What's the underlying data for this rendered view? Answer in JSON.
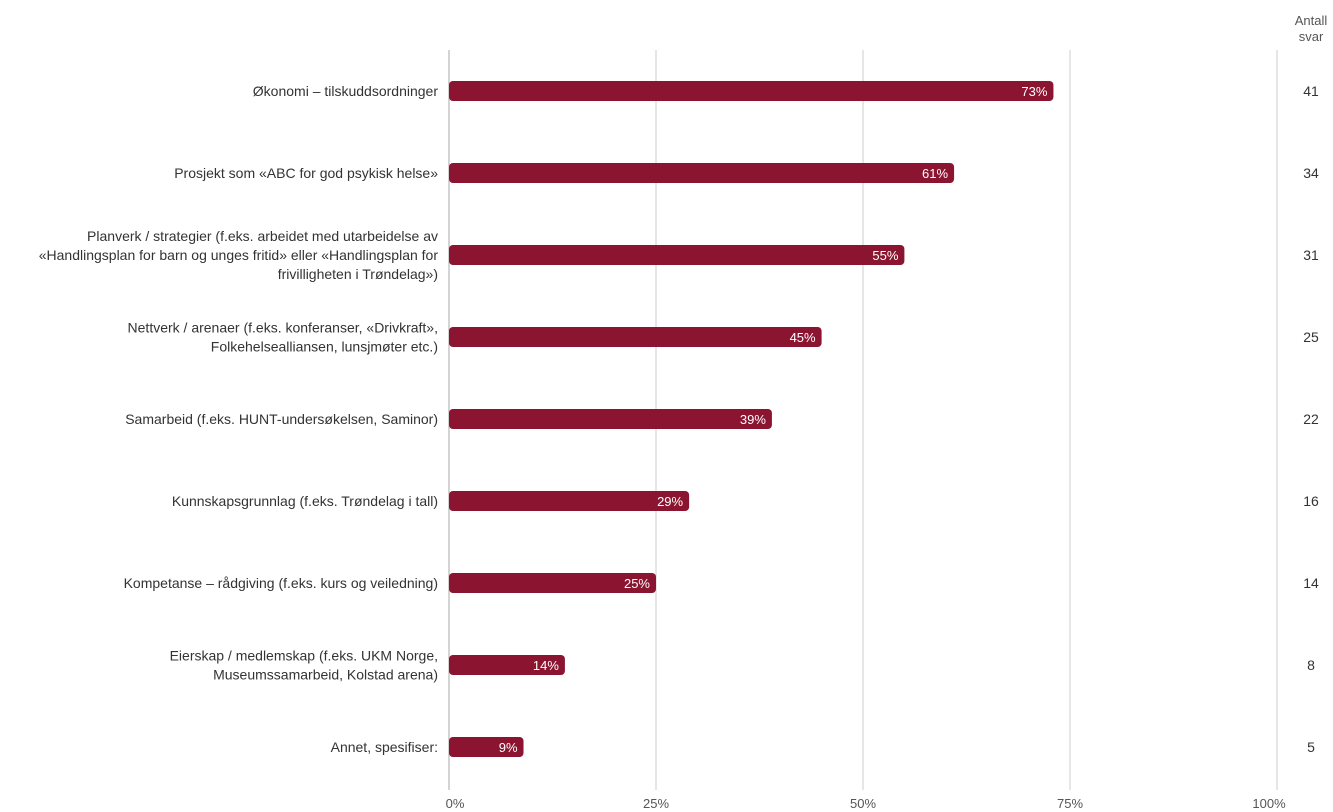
{
  "chart_data": {
    "type": "bar",
    "orientation": "horizontal",
    "categories": [
      [
        "Økonomi – tilskuddsordninger"
      ],
      [
        "Prosjekt som «ABC for god psykisk helse»"
      ],
      [
        "Planverk / strategier (f.eks. arbeidet med utarbeidelse av",
        "«Handlingsplan for barn og unges fritid» eller «Handlingsplan for",
        "frivilligheten i Trøndelag»)"
      ],
      [
        "Nettverk / arenaer (f.eks. konferanser, «Drivkraft»,",
        "Folkehelsealliansen, lunsjmøter etc.)"
      ],
      [
        "Samarbeid (f.eks. HUNT-undersøkelsen, Saminor)"
      ],
      [
        "Kunnskapsgrunnlag (f.eks. Trøndelag i tall)"
      ],
      [
        "Kompetanse – rådgiving (f.eks. kurs og veiledning)"
      ],
      [
        "Eierskap / medlemskap (f.eks. UKM Norge,",
        "Museumssamarbeid, Kolstad arena)"
      ],
      [
        "Annet, spesifiser:"
      ]
    ],
    "values": [
      73,
      61,
      55,
      45,
      39,
      29,
      25,
      14,
      9
    ],
    "value_labels": [
      "73%",
      "61%",
      "55%",
      "45%",
      "39%",
      "29%",
      "25%",
      "14%",
      "9%"
    ],
    "counts_header": [
      "Antall",
      "svar"
    ],
    "counts": [
      "41",
      "34",
      "31",
      "25",
      "22",
      "16",
      "14",
      "8",
      "5"
    ],
    "xlim": [
      0,
      100
    ],
    "xticks": [
      "0%",
      "25%",
      "50%",
      "75%",
      "100%"
    ],
    "grid": true,
    "bar_color": "#8b1530",
    "grid_color": "#cccccc"
  }
}
